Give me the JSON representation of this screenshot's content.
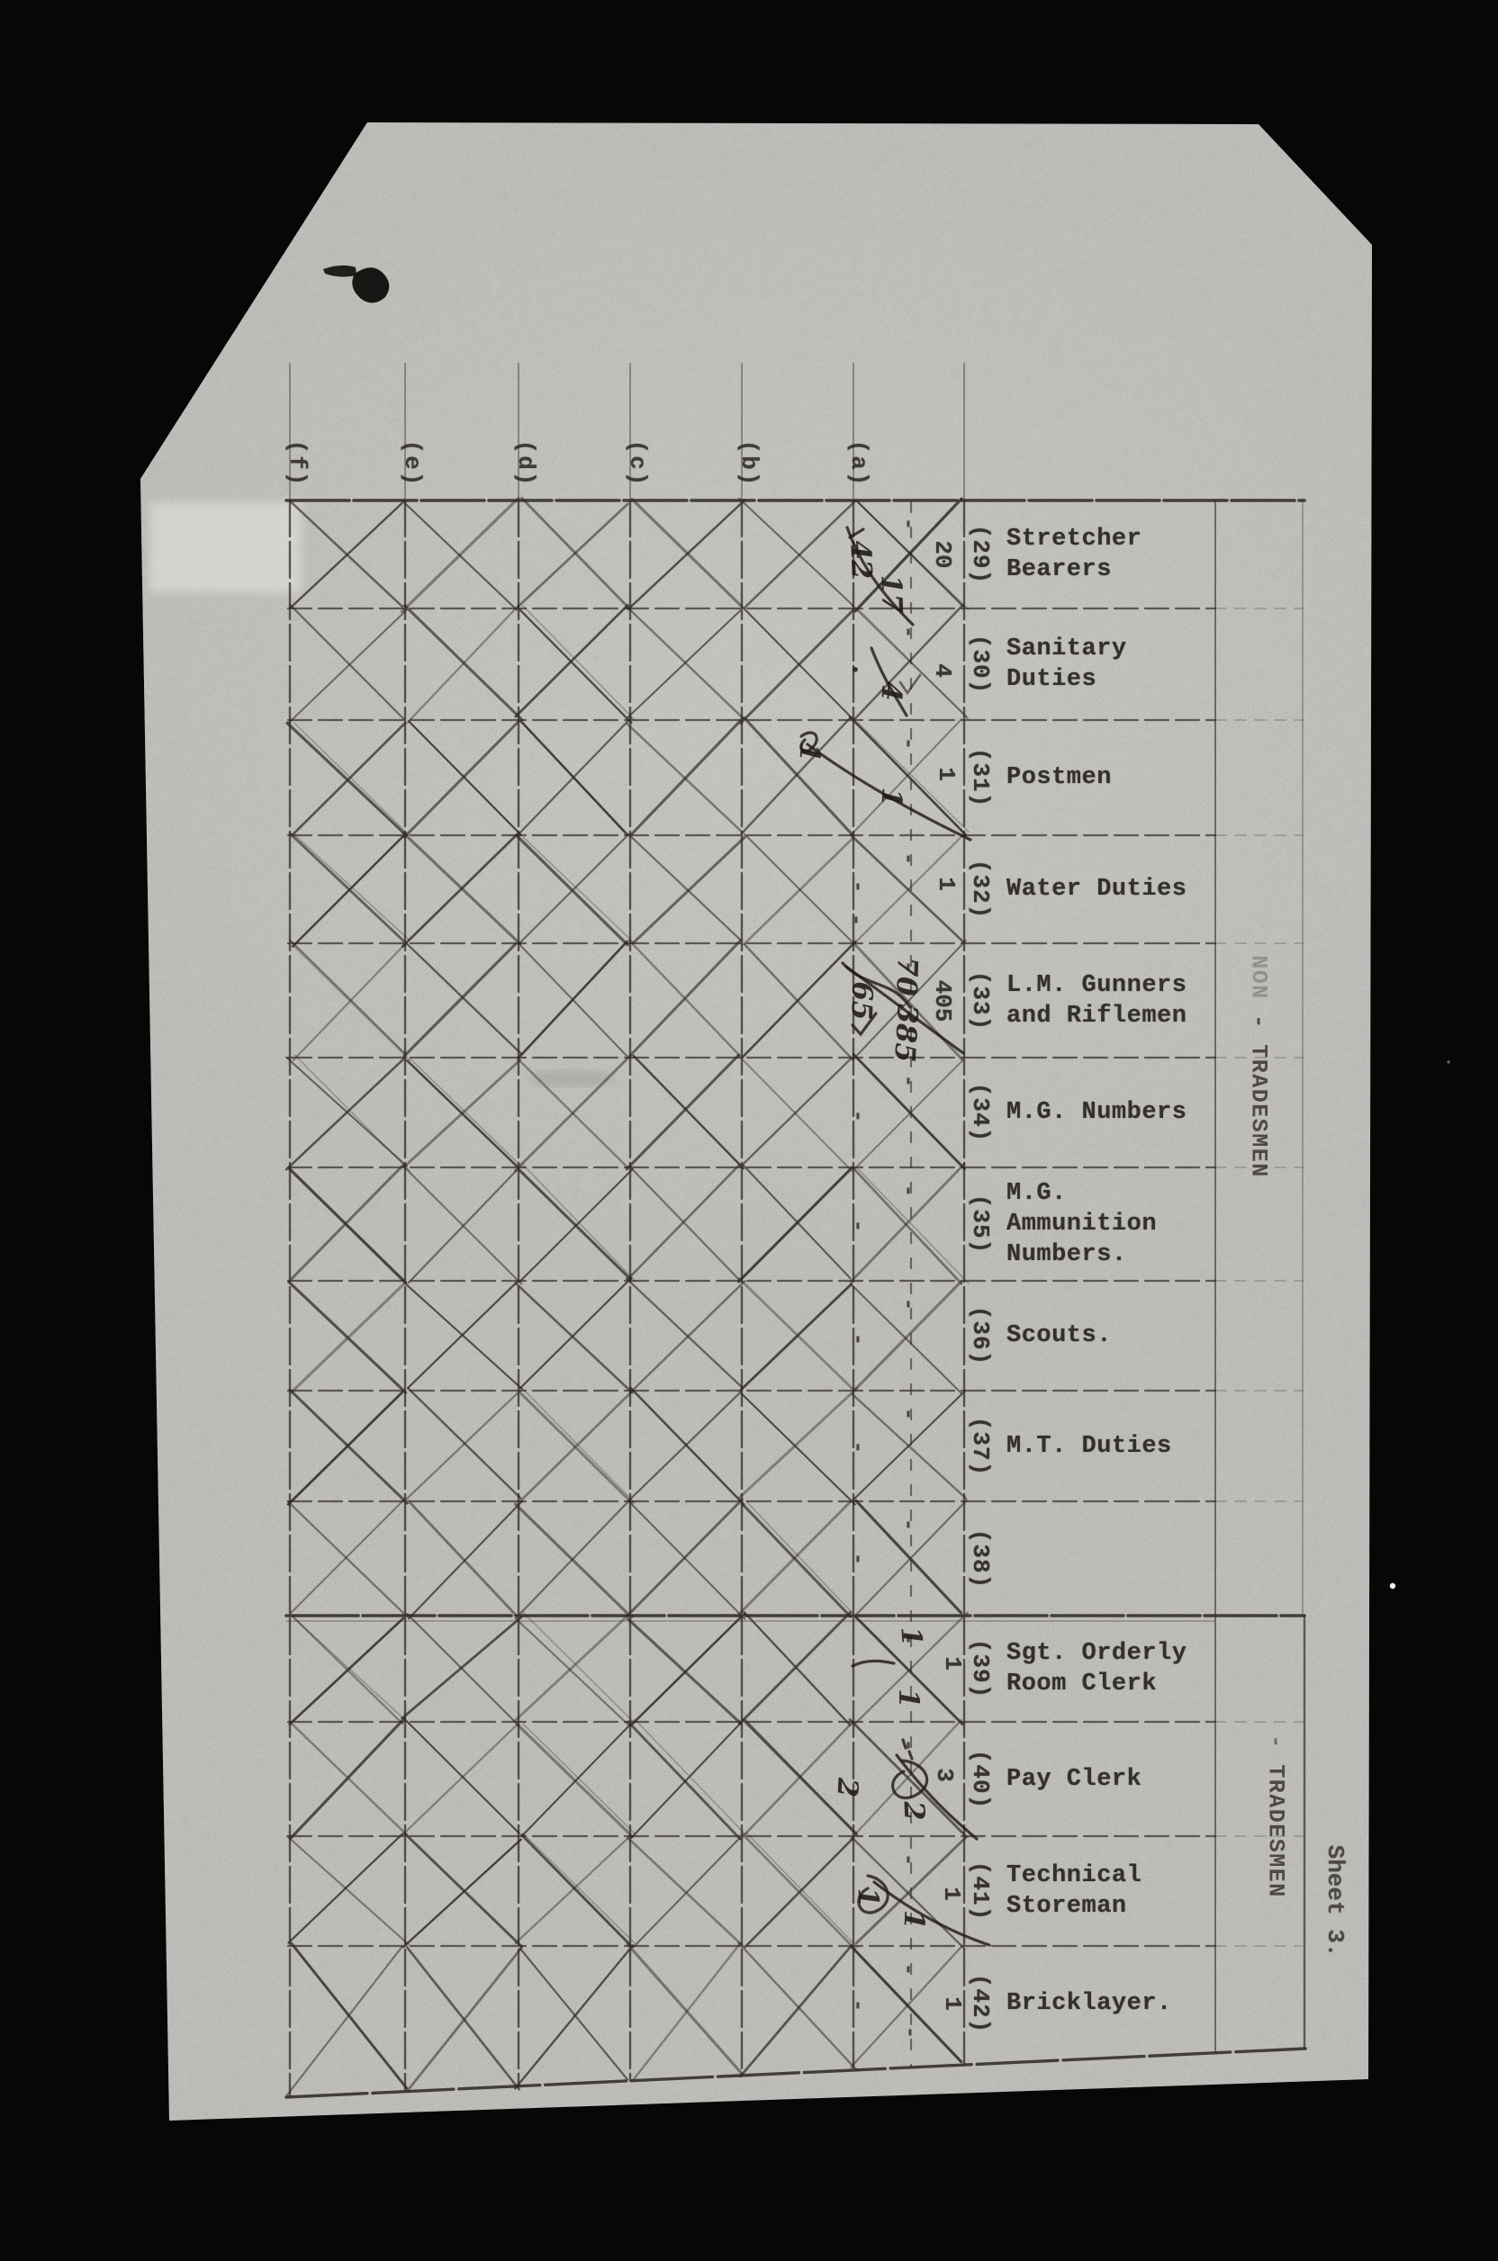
{
  "page": {
    "sheet_label": "Sheet 3.",
    "column_headers": [
      "(f)",
      "(e)",
      "(d)",
      "(c)",
      "(b)",
      "(a)"
    ],
    "sections": [
      {
        "name": "non_tradesmen",
        "prefix": "NON ",
        "label": "- TRADESMEN"
      },
      {
        "name": "tradesmen",
        "prefix": "- ",
        "label": "TRADESMEN"
      }
    ],
    "nil_mark": "-",
    "rows": [
      {
        "number": "(29)",
        "label": "Stretcher\nBearers",
        "typed_value": "20",
        "handwritten": [
          "42",
          "17"
        ]
      },
      {
        "number": "(30)",
        "label": "Sanitary\nDuties",
        "typed_value": "4",
        "handwritten": [
          "4"
        ]
      },
      {
        "number": "(31)",
        "label": "Postmen",
        "typed_value": "1",
        "handwritten": [
          "1",
          "1"
        ]
      },
      {
        "number": "(32)",
        "label": "Water Duties",
        "typed_value": "1",
        "handwritten": []
      },
      {
        "number": "(33)",
        "label": "L.M. Gunners\nand Riflemen",
        "typed_value": "405",
        "handwritten": [
          "70",
          "385",
          "65"
        ]
      },
      {
        "number": "(34)",
        "label": "M.G. Numbers",
        "typed_value": "",
        "handwritten": []
      },
      {
        "number": "(35)",
        "label": "M.G.\nAmmunition\nNumbers.",
        "typed_value": "",
        "handwritten": []
      },
      {
        "number": "(36)",
        "label": "Scouts.",
        "typed_value": "",
        "handwritten": []
      },
      {
        "number": "(37)",
        "label": "M.T. Duties",
        "typed_value": "",
        "handwritten": []
      },
      {
        "number": "(38)",
        "label": "",
        "typed_value": "",
        "handwritten": []
      },
      {
        "number": "(39)",
        "label": "Sgt. Orderly\nRoom Clerk",
        "typed_value": "1",
        "handwritten": [
          "1",
          "1"
        ]
      },
      {
        "number": "(40)",
        "label": "Pay Clerk",
        "typed_value": "3",
        "handwritten": [
          "2",
          "2"
        ]
      },
      {
        "number": "(41)",
        "label": "Technical\nStoreman",
        "typed_value": "1",
        "handwritten": [
          "1",
          "1"
        ]
      },
      {
        "number": "(42)",
        "label": "Bricklayer.",
        "typed_value": "1",
        "handwritten": []
      }
    ],
    "colors": {
      "background": "#070707",
      "paper": "#d6d4cf",
      "ink": "#28251f",
      "pen": "#211c15"
    }
  }
}
